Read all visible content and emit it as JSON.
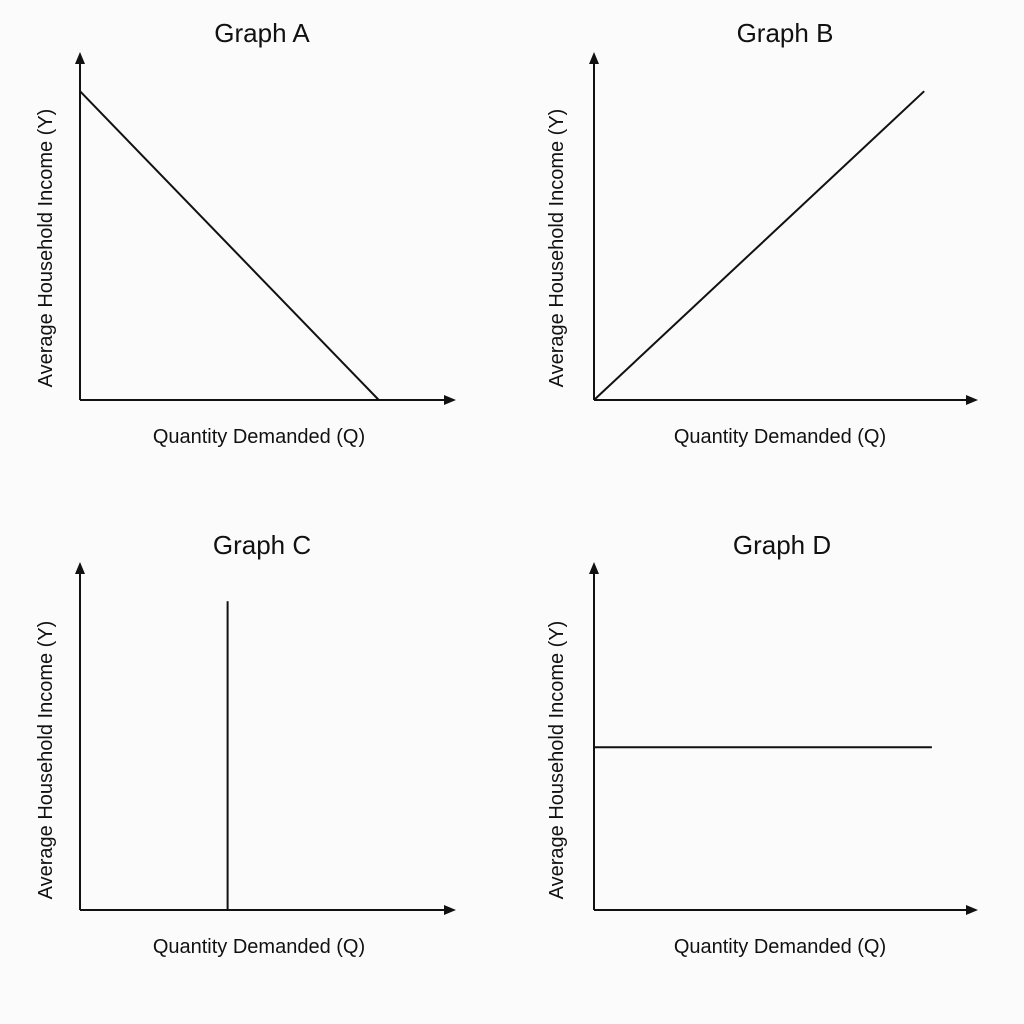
{
  "chart_data": [
    {
      "type": "line",
      "title": "Graph A",
      "xlabel": "Quantity Demanded (Q)",
      "ylabel": "Average Household Income (Y)",
      "xlim": [
        0,
        10
      ],
      "ylim": [
        0,
        10
      ],
      "grid": false,
      "series": [
        {
          "x": [
            0,
            8.3
          ],
          "y": [
            9.3,
            0
          ]
        }
      ]
    },
    {
      "type": "line",
      "title": "Graph B",
      "xlabel": "Quantity Demanded (Q)",
      "ylabel": "Average Household Income (Y)",
      "xlim": [
        0,
        10
      ],
      "ylim": [
        0,
        10
      ],
      "grid": false,
      "series": [
        {
          "x": [
            0,
            8.6
          ],
          "y": [
            0,
            9.3
          ]
        }
      ]
    },
    {
      "type": "line",
      "title": "Graph C",
      "xlabel": "Quantity Demanded (Q)",
      "ylabel": "Average Household Income (Y)",
      "xlim": [
        0,
        10
      ],
      "ylim": [
        0,
        10
      ],
      "grid": false,
      "series": [
        {
          "x": [
            4.1,
            4.1
          ],
          "y": [
            0,
            9.3
          ]
        }
      ]
    },
    {
      "type": "line",
      "title": "Graph D",
      "xlabel": "Quantity Demanded (Q)",
      "ylabel": "Average Household Income (Y)",
      "xlim": [
        0,
        10
      ],
      "ylim": [
        0,
        10
      ],
      "grid": false,
      "series": [
        {
          "x": [
            0,
            8.8
          ],
          "y": [
            4.9,
            4.9
          ]
        }
      ]
    }
  ]
}
